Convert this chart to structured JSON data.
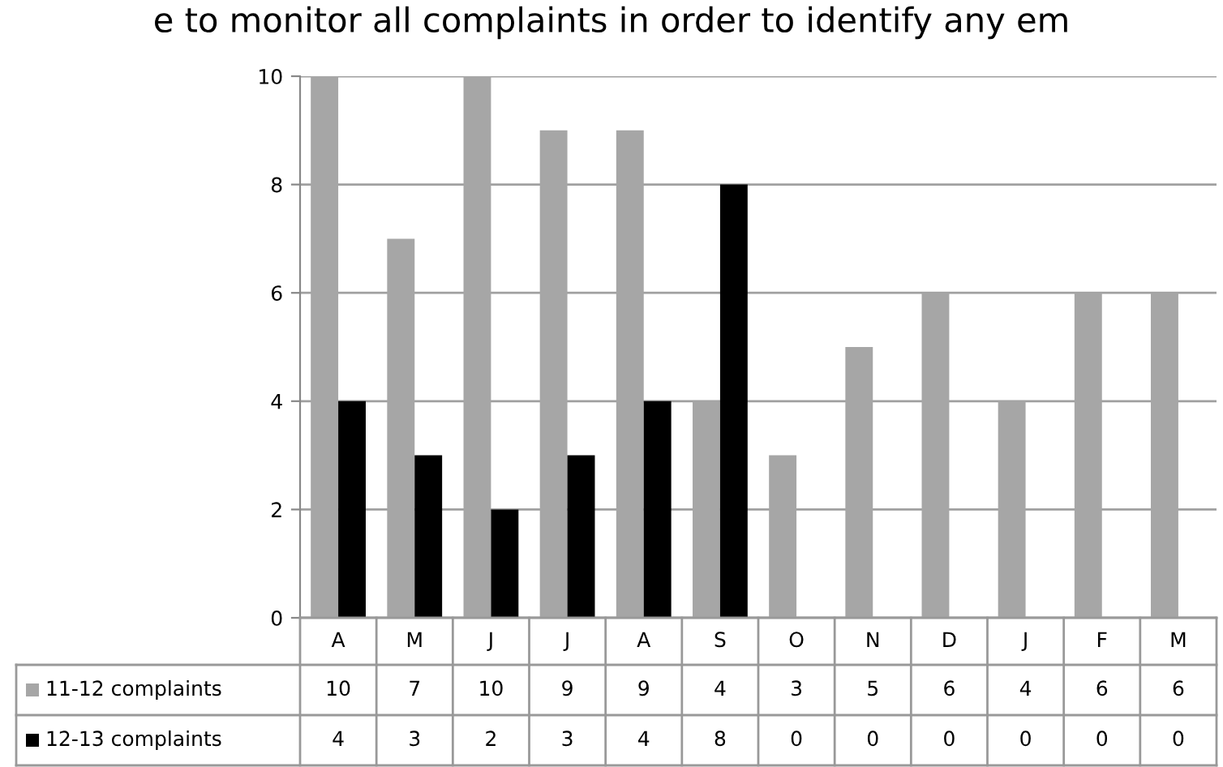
{
  "chart_data": {
    "type": "bar",
    "title": "e to monitor all complaints in order to identify any em",
    "categories": [
      "A",
      "M",
      "J",
      "J",
      "A",
      "S",
      "O",
      "N",
      "D",
      "J",
      "F",
      "M"
    ],
    "series": [
      {
        "name": "11-12 complaints",
        "color": "#a6a6a6",
        "values": [
          10,
          7,
          10,
          9,
          9,
          4,
          3,
          5,
          6,
          4,
          6,
          6
        ]
      },
      {
        "name": "12-13 complaints",
        "color": "#000000",
        "values": [
          4,
          3,
          2,
          3,
          4,
          8,
          0,
          0,
          0,
          0,
          0,
          0
        ]
      }
    ],
    "ylim": [
      0,
      10
    ],
    "yticks": [
      0,
      2,
      4,
      6,
      8,
      10
    ],
    "grid": "y",
    "legend": "bottom",
    "data_labels": true
  }
}
